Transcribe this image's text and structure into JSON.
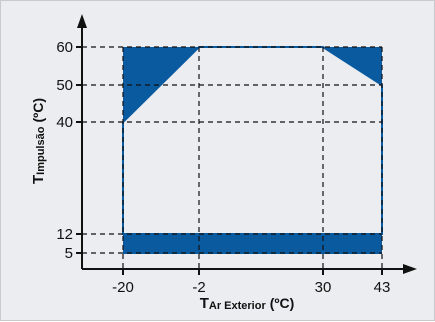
{
  "chart_data": {
    "type": "area",
    "title": "",
    "xlabel": {
      "main": "T",
      "sub": "Ar Exterior",
      "unit": "(ºC)"
    },
    "ylabel": {
      "main": "T",
      "sub": "Impulsão",
      "unit": "(ºC)"
    },
    "x_ticks": [
      -20,
      -2,
      30,
      43
    ],
    "y_ticks": [
      5,
      12,
      40,
      50,
      60
    ],
    "x_tick_labels": [
      "-20",
      "-2",
      "30",
      "43"
    ],
    "y_tick_labels": [
      "5",
      "12",
      "40",
      "50",
      "60"
    ],
    "grid": "dashed at tick values",
    "envelope": {
      "outline": [
        [
          -20,
          12
        ],
        [
          -20,
          40
        ],
        [
          -2,
          60
        ],
        [
          30,
          60
        ],
        [
          43,
          50
        ],
        [
          43,
          12
        ]
      ]
    },
    "shaded_regions": [
      {
        "name": "",
        "points": [
          [
            -20,
            40
          ],
          [
            -20,
            60
          ],
          [
            -2,
            60
          ]
        ]
      },
      {
        "name": "",
        "points": [
          [
            30,
            60
          ],
          [
            43,
            60
          ],
          [
            43,
            50
          ]
        ]
      },
      {
        "name": "",
        "points": [
          [
            -20,
            0
          ],
          [
            43,
            0
          ],
          [
            43,
            12
          ],
          [
            -20,
            12
          ]
        ]
      }
    ],
    "colors": {
      "fill": "#0a5aa0",
      "outline": "#0a5aa0",
      "background": "#ecedf0",
      "grid": "#111111"
    }
  }
}
